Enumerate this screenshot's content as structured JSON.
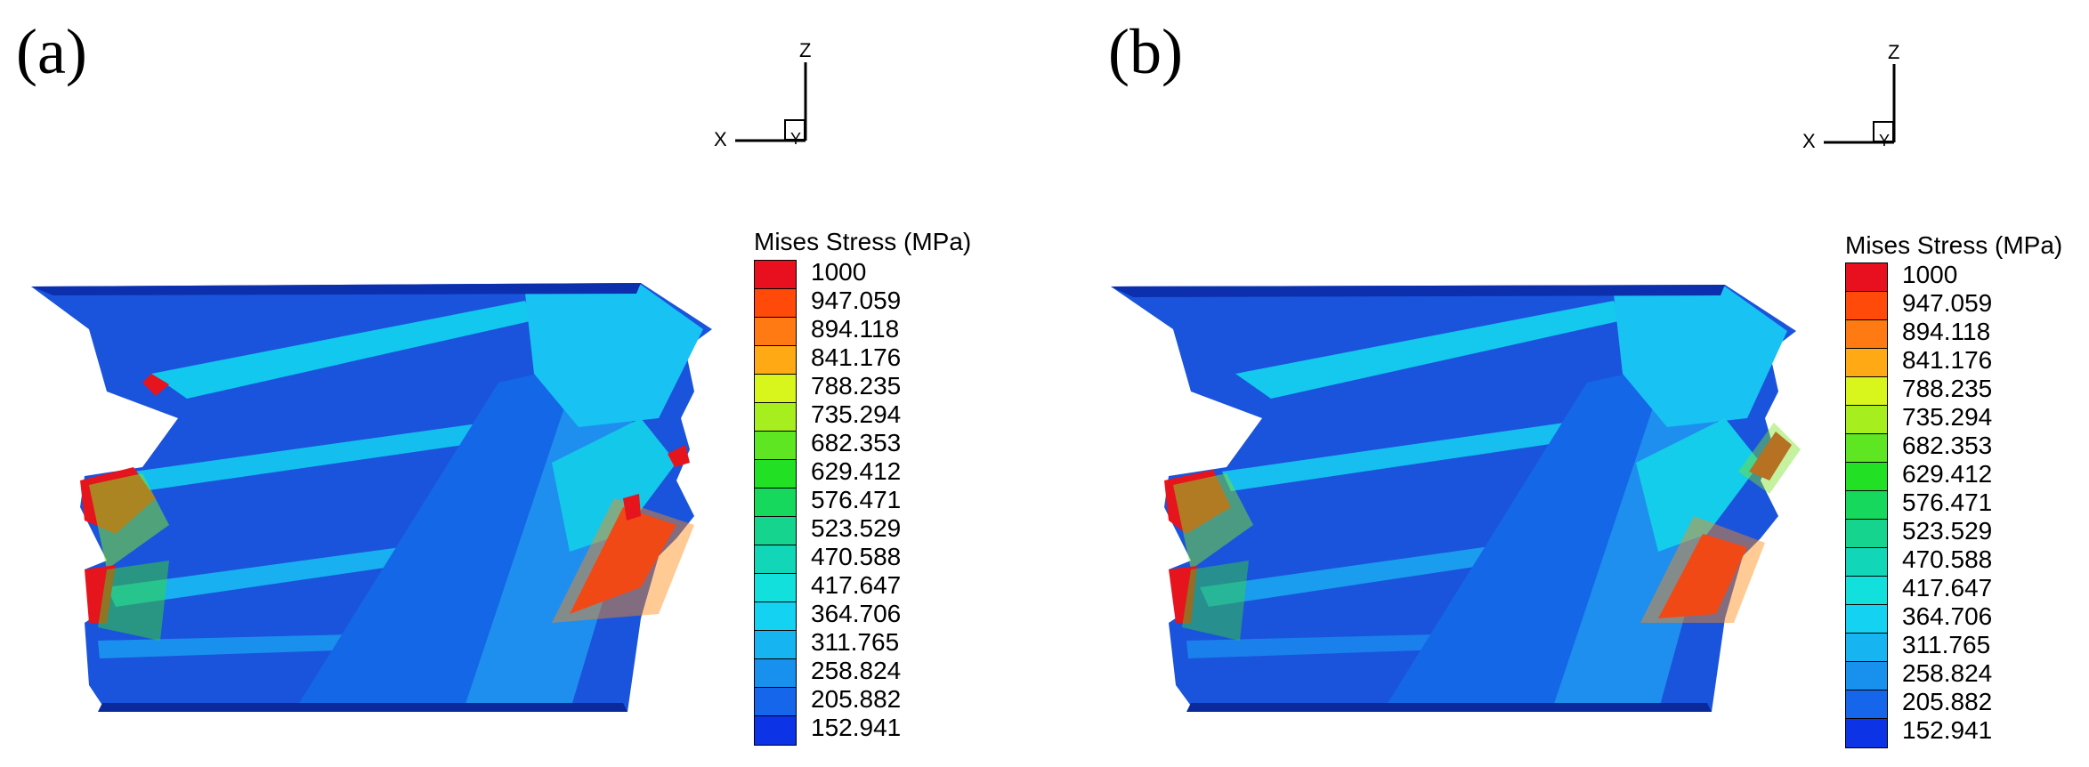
{
  "panels": [
    {
      "label": "(a)",
      "axes": {
        "z": "Z",
        "x": "X",
        "y": "Y"
      }
    },
    {
      "label": "(b)",
      "axes": {
        "z": "Z",
        "x": "X",
        "y": "Y"
      }
    }
  ],
  "legend": {
    "title": "Mises Stress (MPa)",
    "levels": [
      {
        "value": "1000",
        "color": "#e8101e"
      },
      {
        "value": "947.059",
        "color": "#ff4a0a"
      },
      {
        "value": "894.118",
        "color": "#ff7a12"
      },
      {
        "value": "841.176",
        "color": "#ffaa14"
      },
      {
        "value": "788.235",
        "color": "#d8f51c"
      },
      {
        "value": "735.294",
        "color": "#a6ee1e"
      },
      {
        "value": "682.353",
        "color": "#5fe622"
      },
      {
        "value": "629.412",
        "color": "#22e024"
      },
      {
        "value": "576.471",
        "color": "#16d85c"
      },
      {
        "value": "523.529",
        "color": "#14d48e"
      },
      {
        "value": "470.588",
        "color": "#12d6b8"
      },
      {
        "value": "417.647",
        "color": "#12e0dc"
      },
      {
        "value": "364.706",
        "color": "#14d2f2"
      },
      {
        "value": "311.765",
        "color": "#16b4f0"
      },
      {
        "value": "258.824",
        "color": "#1890ee"
      },
      {
        "value": "205.882",
        "color": "#1666ec"
      },
      {
        "value": "152.941",
        "color": "#0c34e6"
      }
    ]
  }
}
